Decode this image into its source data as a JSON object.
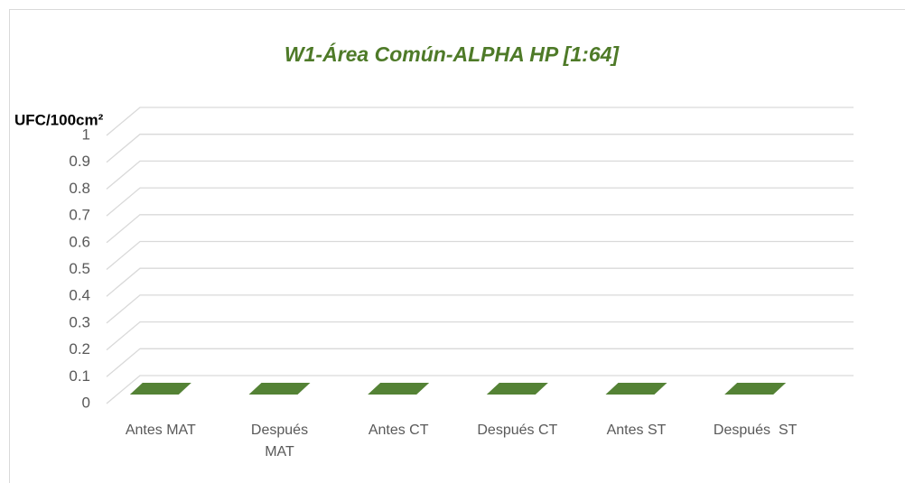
{
  "chart_data": {
    "type": "bar3d",
    "title": "W1-Área Común-ALPHA HP [1:64]",
    "y_label": "UFC/100cm²",
    "categories": [
      "Antes MAT",
      "Después MAT",
      "Antes CT",
      "Después CT",
      "Antes ST",
      "Después  ST"
    ],
    "values": [
      0,
      0,
      0,
      0,
      0,
      0
    ],
    "color": "#548235",
    "ylim": [
      0,
      1
    ],
    "yticks": [
      0,
      0.1,
      0.2,
      0.3,
      0.4,
      0.5,
      0.6,
      0.7,
      0.8,
      0.9,
      1
    ],
    "grid": true
  }
}
